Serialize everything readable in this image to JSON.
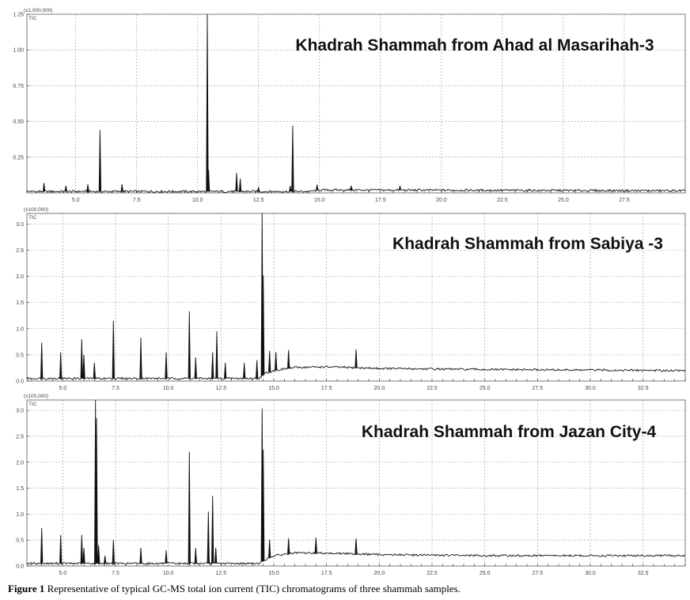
{
  "caption": {
    "label": "Figure 1",
    "text": " Representative of typical GC-MS total ion current (TIC) chromatograms of three shammah samples."
  },
  "chart_data": [
    {
      "type": "line",
      "title": "Khadrah Shammah from Ahad al Masarihah-3",
      "trace_label": "TIC",
      "scale_label": "(x1,000,000)",
      "xlim": [
        3.0,
        30.0
      ],
      "ylim": [
        0,
        1.25
      ],
      "x_ticks": [
        "5.0",
        "7.5",
        "10.0",
        "12.5",
        "15.0",
        "17.5",
        "20.0",
        "22.5",
        "25.0",
        "27.5"
      ],
      "x_tick_values": [
        5.0,
        7.5,
        10.0,
        12.5,
        15.0,
        17.5,
        20.0,
        22.5,
        25.0,
        27.5
      ],
      "y_ticks": [
        "0.25",
        "0.50",
        "0.75",
        "1.00",
        "1.25"
      ],
      "y_tick_values": [
        0.25,
        0.5,
        0.75,
        1.0,
        1.25
      ],
      "baseline": [
        [
          3.0,
          0.01
        ],
        [
          14.6,
          0.01
        ],
        [
          15.0,
          0.02
        ],
        [
          16.5,
          0.02
        ],
        [
          30.0,
          0.015
        ]
      ],
      "peaks": [
        {
          "rt": 3.7,
          "height": 0.06
        },
        {
          "rt": 4.6,
          "height": 0.04
        },
        {
          "rt": 5.5,
          "height": 0.05
        },
        {
          "rt": 6.0,
          "height": 0.43
        },
        {
          "rt": 6.9,
          "height": 0.05
        },
        {
          "rt": 10.4,
          "height": 1.35
        },
        {
          "rt": 10.45,
          "height": 0.15
        },
        {
          "rt": 11.6,
          "height": 0.13
        },
        {
          "rt": 11.75,
          "height": 0.09
        },
        {
          "rt": 12.5,
          "height": 0.03
        },
        {
          "rt": 13.8,
          "height": 0.04
        },
        {
          "rt": 13.9,
          "height": 0.46
        },
        {
          "rt": 14.9,
          "height": 0.04
        },
        {
          "rt": 16.3,
          "height": 0.03
        },
        {
          "rt": 18.3,
          "height": 0.03
        }
      ]
    },
    {
      "type": "line",
      "title": "Khadrah Shammah from Sabiya -3",
      "trace_label": "TIC",
      "scale_label": "(x100,000)",
      "xlim": [
        3.3,
        34.5
      ],
      "ylim": [
        0,
        3.2
      ],
      "x_ticks": [
        "5.0",
        "7.5",
        "10.0",
        "12.5",
        "15.0",
        "17.5",
        "20.0",
        "22.5",
        "25.0",
        "27.5",
        "30.0",
        "32.5"
      ],
      "x_tick_values": [
        5.0,
        7.5,
        10.0,
        12.5,
        15.0,
        17.5,
        20.0,
        22.5,
        25.0,
        27.5,
        30.0,
        32.5
      ],
      "y_ticks": [
        "0.0",
        "0.5",
        "1.0",
        "1.5",
        "2.0",
        "2.5",
        "3.0"
      ],
      "y_tick_values": [
        0,
        0.5,
        1.0,
        1.5,
        2.0,
        2.5,
        3.0
      ],
      "baseline": [
        [
          3.3,
          0.05
        ],
        [
          14.3,
          0.05
        ],
        [
          14.6,
          0.15
        ],
        [
          15.0,
          0.2
        ],
        [
          16.0,
          0.26
        ],
        [
          17.5,
          0.27
        ],
        [
          20.0,
          0.24
        ],
        [
          25.0,
          0.22
        ],
        [
          34.5,
          0.2
        ]
      ],
      "peaks": [
        {
          "rt": 4.0,
          "height": 0.68
        },
        {
          "rt": 4.9,
          "height": 0.5
        },
        {
          "rt": 5.9,
          "height": 0.75
        },
        {
          "rt": 6.0,
          "height": 0.45
        },
        {
          "rt": 6.5,
          "height": 0.3
        },
        {
          "rt": 7.4,
          "height": 1.1
        },
        {
          "rt": 8.7,
          "height": 0.78
        },
        {
          "rt": 9.9,
          "height": 0.5
        },
        {
          "rt": 11.0,
          "height": 1.28
        },
        {
          "rt": 11.3,
          "height": 0.4
        },
        {
          "rt": 12.1,
          "height": 0.5
        },
        {
          "rt": 12.3,
          "height": 0.9
        },
        {
          "rt": 12.7,
          "height": 0.3
        },
        {
          "rt": 13.6,
          "height": 0.3
        },
        {
          "rt": 14.2,
          "height": 0.35
        },
        {
          "rt": 14.45,
          "height": 3.3
        },
        {
          "rt": 14.5,
          "height": 1.9
        },
        {
          "rt": 14.8,
          "height": 0.4
        },
        {
          "rt": 15.1,
          "height": 0.35
        },
        {
          "rt": 15.7,
          "height": 0.35
        },
        {
          "rt": 18.9,
          "height": 0.35
        }
      ]
    },
    {
      "type": "line",
      "title": "Khadrah Shammah from Jazan City-4",
      "trace_label": "TIC",
      "scale_label": "(x100,000)",
      "xlim": [
        3.3,
        34.5
      ],
      "ylim": [
        0,
        3.2
      ],
      "x_ticks": [
        "5.0",
        "7.5",
        "10.0",
        "12.5",
        "15.0",
        "17.5",
        "20.0",
        "22.5",
        "25.0",
        "27.5",
        "30.0",
        "32.5"
      ],
      "x_tick_values": [
        5.0,
        7.5,
        10.0,
        12.5,
        15.0,
        17.5,
        20.0,
        22.5,
        25.0,
        27.5,
        30.0,
        32.5
      ],
      "y_ticks": [
        "0.0",
        "0.5",
        "1.0",
        "1.5",
        "2.0",
        "2.5",
        "3.0"
      ],
      "y_tick_values": [
        0,
        0.5,
        1.0,
        1.5,
        2.0,
        2.5,
        3.0
      ],
      "baseline": [
        [
          3.3,
          0.05
        ],
        [
          14.3,
          0.05
        ],
        [
          14.6,
          0.12
        ],
        [
          15.0,
          0.2
        ],
        [
          16.0,
          0.25
        ],
        [
          17.5,
          0.25
        ],
        [
          20.0,
          0.22
        ],
        [
          25.0,
          0.2
        ],
        [
          34.5,
          0.2
        ]
      ],
      "peaks": [
        {
          "rt": 4.0,
          "height": 0.68
        },
        {
          "rt": 4.9,
          "height": 0.55
        },
        {
          "rt": 5.9,
          "height": 0.55
        },
        {
          "rt": 6.0,
          "height": 0.3
        },
        {
          "rt": 6.55,
          "height": 3.3
        },
        {
          "rt": 6.6,
          "height": 2.8
        },
        {
          "rt": 6.7,
          "height": 0.35
        },
        {
          "rt": 7.0,
          "height": 0.15
        },
        {
          "rt": 7.4,
          "height": 0.45
        },
        {
          "rt": 8.7,
          "height": 0.3
        },
        {
          "rt": 9.9,
          "height": 0.25
        },
        {
          "rt": 11.0,
          "height": 2.15
        },
        {
          "rt": 11.3,
          "height": 0.3
        },
        {
          "rt": 11.9,
          "height": 1.0
        },
        {
          "rt": 12.1,
          "height": 1.3
        },
        {
          "rt": 12.25,
          "height": 0.3
        },
        {
          "rt": 14.45,
          "height": 2.95
        },
        {
          "rt": 14.5,
          "height": 2.15
        },
        {
          "rt": 14.8,
          "height": 0.35
        },
        {
          "rt": 15.7,
          "height": 0.3
        },
        {
          "rt": 17.0,
          "height": 0.3
        },
        {
          "rt": 18.9,
          "height": 0.3
        }
      ]
    }
  ]
}
